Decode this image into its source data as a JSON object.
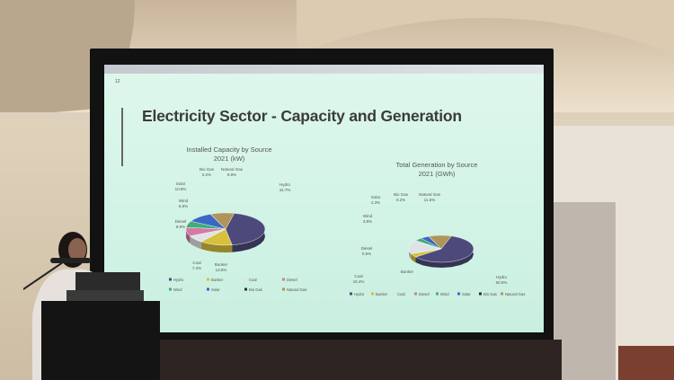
{
  "slide": {
    "number": "12",
    "title": "Electricity Sector - Capacity and Generation",
    "left_chart_title_1": "Installed Capacity by Source",
    "left_chart_title_2": "2021 (kW)",
    "right_chart_title_1": "Total Generation by Source",
    "right_chart_title_2": "2021 (GWh)"
  },
  "chart_data": [
    {
      "type": "pie",
      "title": "Installed Capacity by Source 2021 (kW)",
      "slices": [
        {
          "label": "Hydro",
          "value": 44.7,
          "value_text": "44.7%",
          "color": "#4c4a7a"
        },
        {
          "label": "Bunker",
          "value": 13.5,
          "value_text": "13.5%",
          "color": "#d8c03c"
        },
        {
          "label": "Coal",
          "value": 7.4,
          "value_text": "7.4%",
          "color": "#dfe3e8"
        },
        {
          "label": "Diesel",
          "value": 8.9,
          "value_text": "8.9%",
          "color": "#d47aa6"
        },
        {
          "label": "Wind",
          "value": 6.6,
          "value_text": "6.6%",
          "color": "#3fae78"
        },
        {
          "label": "Solar",
          "value": 10.8,
          "value_text": "10.8%",
          "color": "#3a68c4"
        },
        {
          "label": "Bio Gas",
          "value": 0.2,
          "value_text": "0.2%",
          "color": "#2c2c3c"
        },
        {
          "label": "Natural Gas",
          "value": 9.8,
          "value_text": "9.8%",
          "color": "#b0955a"
        }
      ],
      "legend": [
        "Hydro",
        "Bunker",
        "Coal",
        "Diesel",
        "Wind",
        "Solar",
        "Bio Gas",
        "Natural Gas"
      ],
      "legend_position": "bottom"
    },
    {
      "type": "pie",
      "title": "Total Generation by Source 2021 (GWh)",
      "slices": [
        {
          "label": "Hydro",
          "value": 60.5,
          "value_text": "60.5%",
          "color": "#4c4a7a"
        },
        {
          "label": "Bunker",
          "value": 4.5,
          "value_text": "",
          "color": "#d8c03c"
        },
        {
          "label": "Coal",
          "value": 16.4,
          "value_text": "16.4%",
          "color": "#dfe3e8"
        },
        {
          "label": "Diesel",
          "value": 0.5,
          "value_text": "0.5%",
          "color": "#d47aa6"
        },
        {
          "label": "Wind",
          "value": 3.8,
          "value_text": "3.8%",
          "color": "#3fae78"
        },
        {
          "label": "Solar",
          "value": 4.3,
          "value_text": "4.3%",
          "color": "#3a68c4"
        },
        {
          "label": "Bio Gas",
          "value": 0.2,
          "value_text": "0.2%",
          "color": "#2c2c3c"
        },
        {
          "label": "Natural Gas",
          "value": 11.5,
          "value_text": "11.5%",
          "color": "#b0955a"
        }
      ],
      "legend": [
        "Hydro",
        "Bunker",
        "Coal",
        "Diesel",
        "Wind",
        "Solar",
        "Bio Gas",
        "Natural Gas"
      ],
      "legend_position": "bottom"
    }
  ]
}
